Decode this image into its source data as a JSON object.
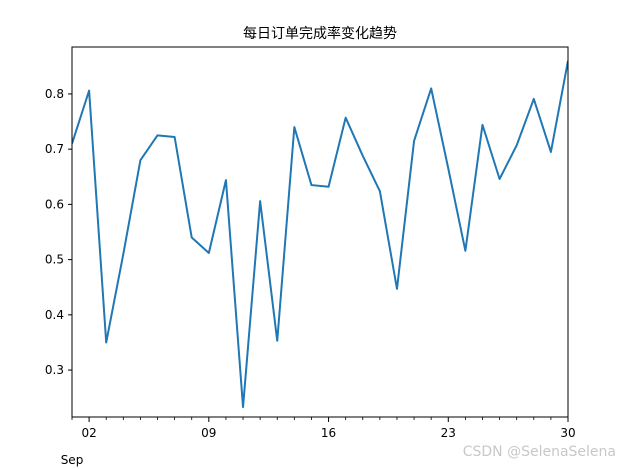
{
  "chart_data": {
    "type": "line",
    "title": "每日订单完成率变化趋势",
    "xlabel": "",
    "ylabel": "",
    "x_unit": "day of month",
    "x_range": [
      1,
      30
    ],
    "ylim": [
      0.215,
      0.885
    ],
    "y_ticks": [
      0.3,
      0.4,
      0.5,
      0.6,
      0.7,
      0.8
    ],
    "y_tick_labels": [
      "0.3",
      "0.4",
      "0.5",
      "0.6",
      "0.7",
      "0.8"
    ],
    "x_ticks": [
      2,
      9,
      16,
      23,
      30
    ],
    "x_tick_labels": [
      "02",
      "09",
      "16",
      "23",
      "30"
    ],
    "x_minor_ticks": [
      1,
      3,
      4,
      5,
      6,
      7,
      8,
      10,
      11,
      12,
      13,
      14,
      15,
      17,
      18,
      19,
      20,
      21,
      22,
      24,
      25,
      26,
      27,
      28,
      29
    ],
    "x_month_label": "Sep",
    "grid": false,
    "line_color": "#1f77b4",
    "series": [
      {
        "x": [
          1,
          2,
          3,
          4,
          5,
          6,
          7,
          8,
          9,
          10,
          11,
          12,
          13,
          14,
          15,
          16,
          17,
          18,
          19,
          20,
          21,
          22,
          23,
          24,
          25,
          26,
          27,
          28,
          29,
          30
        ],
        "values": [
          0.71,
          0.806,
          0.35,
          0.51,
          0.68,
          0.725,
          0.722,
          0.54,
          0.512,
          0.644,
          0.233,
          0.606,
          0.353,
          0.74,
          0.635,
          0.632,
          0.757,
          0.688,
          0.624,
          0.447,
          0.715,
          0.81,
          0.665,
          0.516,
          0.744,
          0.646,
          0.707,
          0.791,
          0.695,
          0.86
        ]
      }
    ]
  },
  "watermark": "CSDN @SelenaSelena"
}
